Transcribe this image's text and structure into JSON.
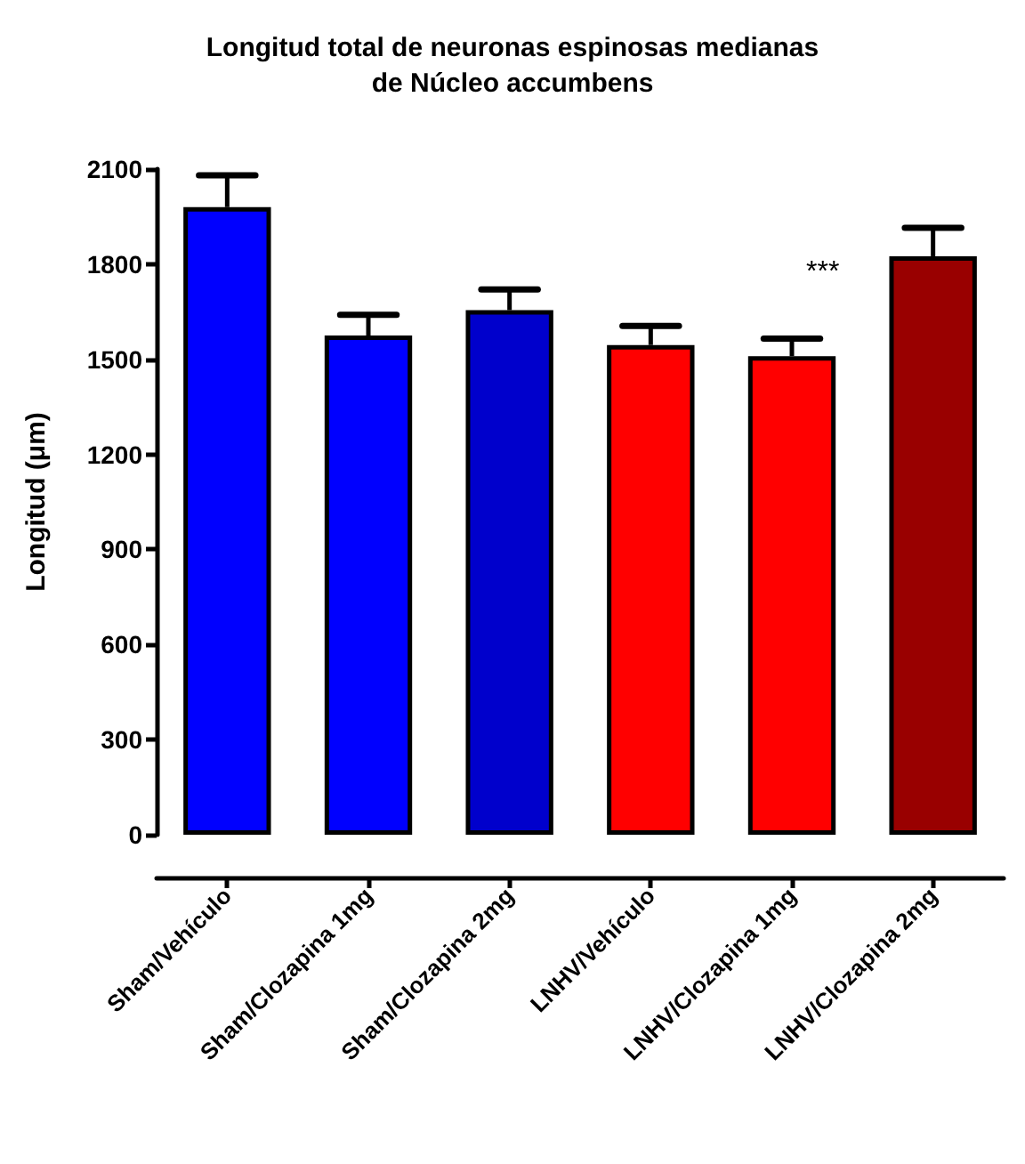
{
  "chart_data": {
    "type": "bar",
    "title": "Longitud total de neuronas espinosas medianas\nde Núcleo accumbens",
    "ylabel": "Longitud (μm)",
    "categories": [
      "Sham/Vehículo",
      "Sham/Clozapina 1mg",
      "Sham/Clozapina 2mg",
      "LNHV/Vehículo",
      "LNHV/Clozapina 1mg",
      "LNHV/Clozapina 2mg"
    ],
    "values": [
      1980,
      1575,
      1655,
      1545,
      1510,
      1825
    ],
    "errors": [
      100,
      65,
      65,
      60,
      55,
      90
    ],
    "colors": [
      "#0000ff",
      "#0000ff",
      "#0000cc",
      "#ff0000",
      "#ff0000",
      "#990000"
    ],
    "ylim": [
      0,
      2100
    ],
    "yticks": [
      0,
      300,
      600,
      900,
      1200,
      1500,
      1800,
      2100
    ],
    "grid": false,
    "annotations": [
      "***"
    ]
  }
}
